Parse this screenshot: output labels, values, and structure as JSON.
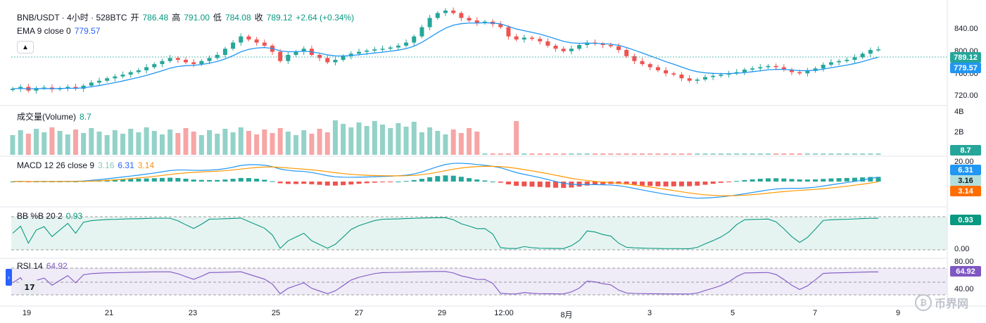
{
  "header": {
    "symbol": "BNB/USDT · 4小时 · 528BTC",
    "open_label": "开",
    "open": "786.48",
    "high_label": "高",
    "high": "791.00",
    "low_label": "低",
    "low": "784.08",
    "close_label": "收",
    "close": "789.12",
    "change": "+2.64 (+0.34%)"
  },
  "ema": {
    "label": "EMA 9 close 0",
    "value": "779.57"
  },
  "volume": {
    "label": "成交量(Volume)",
    "value": "8.7"
  },
  "macd": {
    "label": "MACD 12 26 close 9",
    "v1": "3.16",
    "v2": "6.31",
    "v3": "3.14"
  },
  "bbpb": {
    "label": "BB %B 20 2",
    "value": "0.93"
  },
  "rsi": {
    "label": "RSI 14",
    "value": "64.92"
  },
  "price_axis": [
    "840.00",
    "800.00",
    "760.00",
    "720.00"
  ],
  "volume_axis": [
    "4B",
    "2B"
  ],
  "macd_axis": [
    "20.00"
  ],
  "bb_axis": [
    "0.00"
  ],
  "rsi_axis": [
    "80.00",
    "40.00"
  ],
  "price_tags": {
    "last": "789.12",
    "ema": "779.57",
    "volume": "8.7",
    "macd_a": "6.31",
    "macd_b": "3.16",
    "macd_c": "3.14",
    "bb": "0.93",
    "rsi": "64.92"
  },
  "time_axis": [
    "19",
    "21",
    "23",
    "25",
    "27",
    "29",
    "12:00",
    "8月",
    "3",
    "5",
    "7",
    "9"
  ],
  "colors": {
    "up": "#26a69a",
    "down": "#ef5350",
    "ema": "#2196f3",
    "macd_line": "#2196f3",
    "signal_line": "#ff9800",
    "bb": "#089981",
    "rsi": "#7e57c2"
  },
  "watermark": "币界网",
  "chart_data": {
    "type": "candlestick",
    "interval": "4h",
    "price_range": [
      700,
      860
    ],
    "closes": [
      725,
      728,
      722,
      726,
      727,
      724,
      726,
      728,
      725,
      730,
      735,
      738,
      742,
      745,
      748,
      752,
      755,
      760,
      765,
      770,
      775,
      772,
      768,
      765,
      770,
      775,
      780,
      790,
      800,
      810,
      805,
      800,
      795,
      785,
      770,
      780,
      785,
      790,
      780,
      775,
      768,
      772,
      778,
      782,
      785,
      787,
      789,
      790,
      792,
      795,
      800,
      810,
      825,
      840,
      848,
      852,
      848,
      840,
      836,
      832,
      834,
      830,
      825,
      810,
      805,
      808,
      806,
      802,
      795,
      790,
      786,
      790,
      796,
      800,
      798,
      796,
      794,
      788,
      778,
      770,
      765,
      760,
      755,
      750,
      748,
      742,
      738,
      740,
      744,
      746,
      748,
      750,
      752,
      756,
      758,
      760,
      762,
      760,
      756,
      752,
      750,
      754,
      758,
      764,
      768,
      770,
      772,
      776,
      782,
      788,
      789
    ]
  }
}
